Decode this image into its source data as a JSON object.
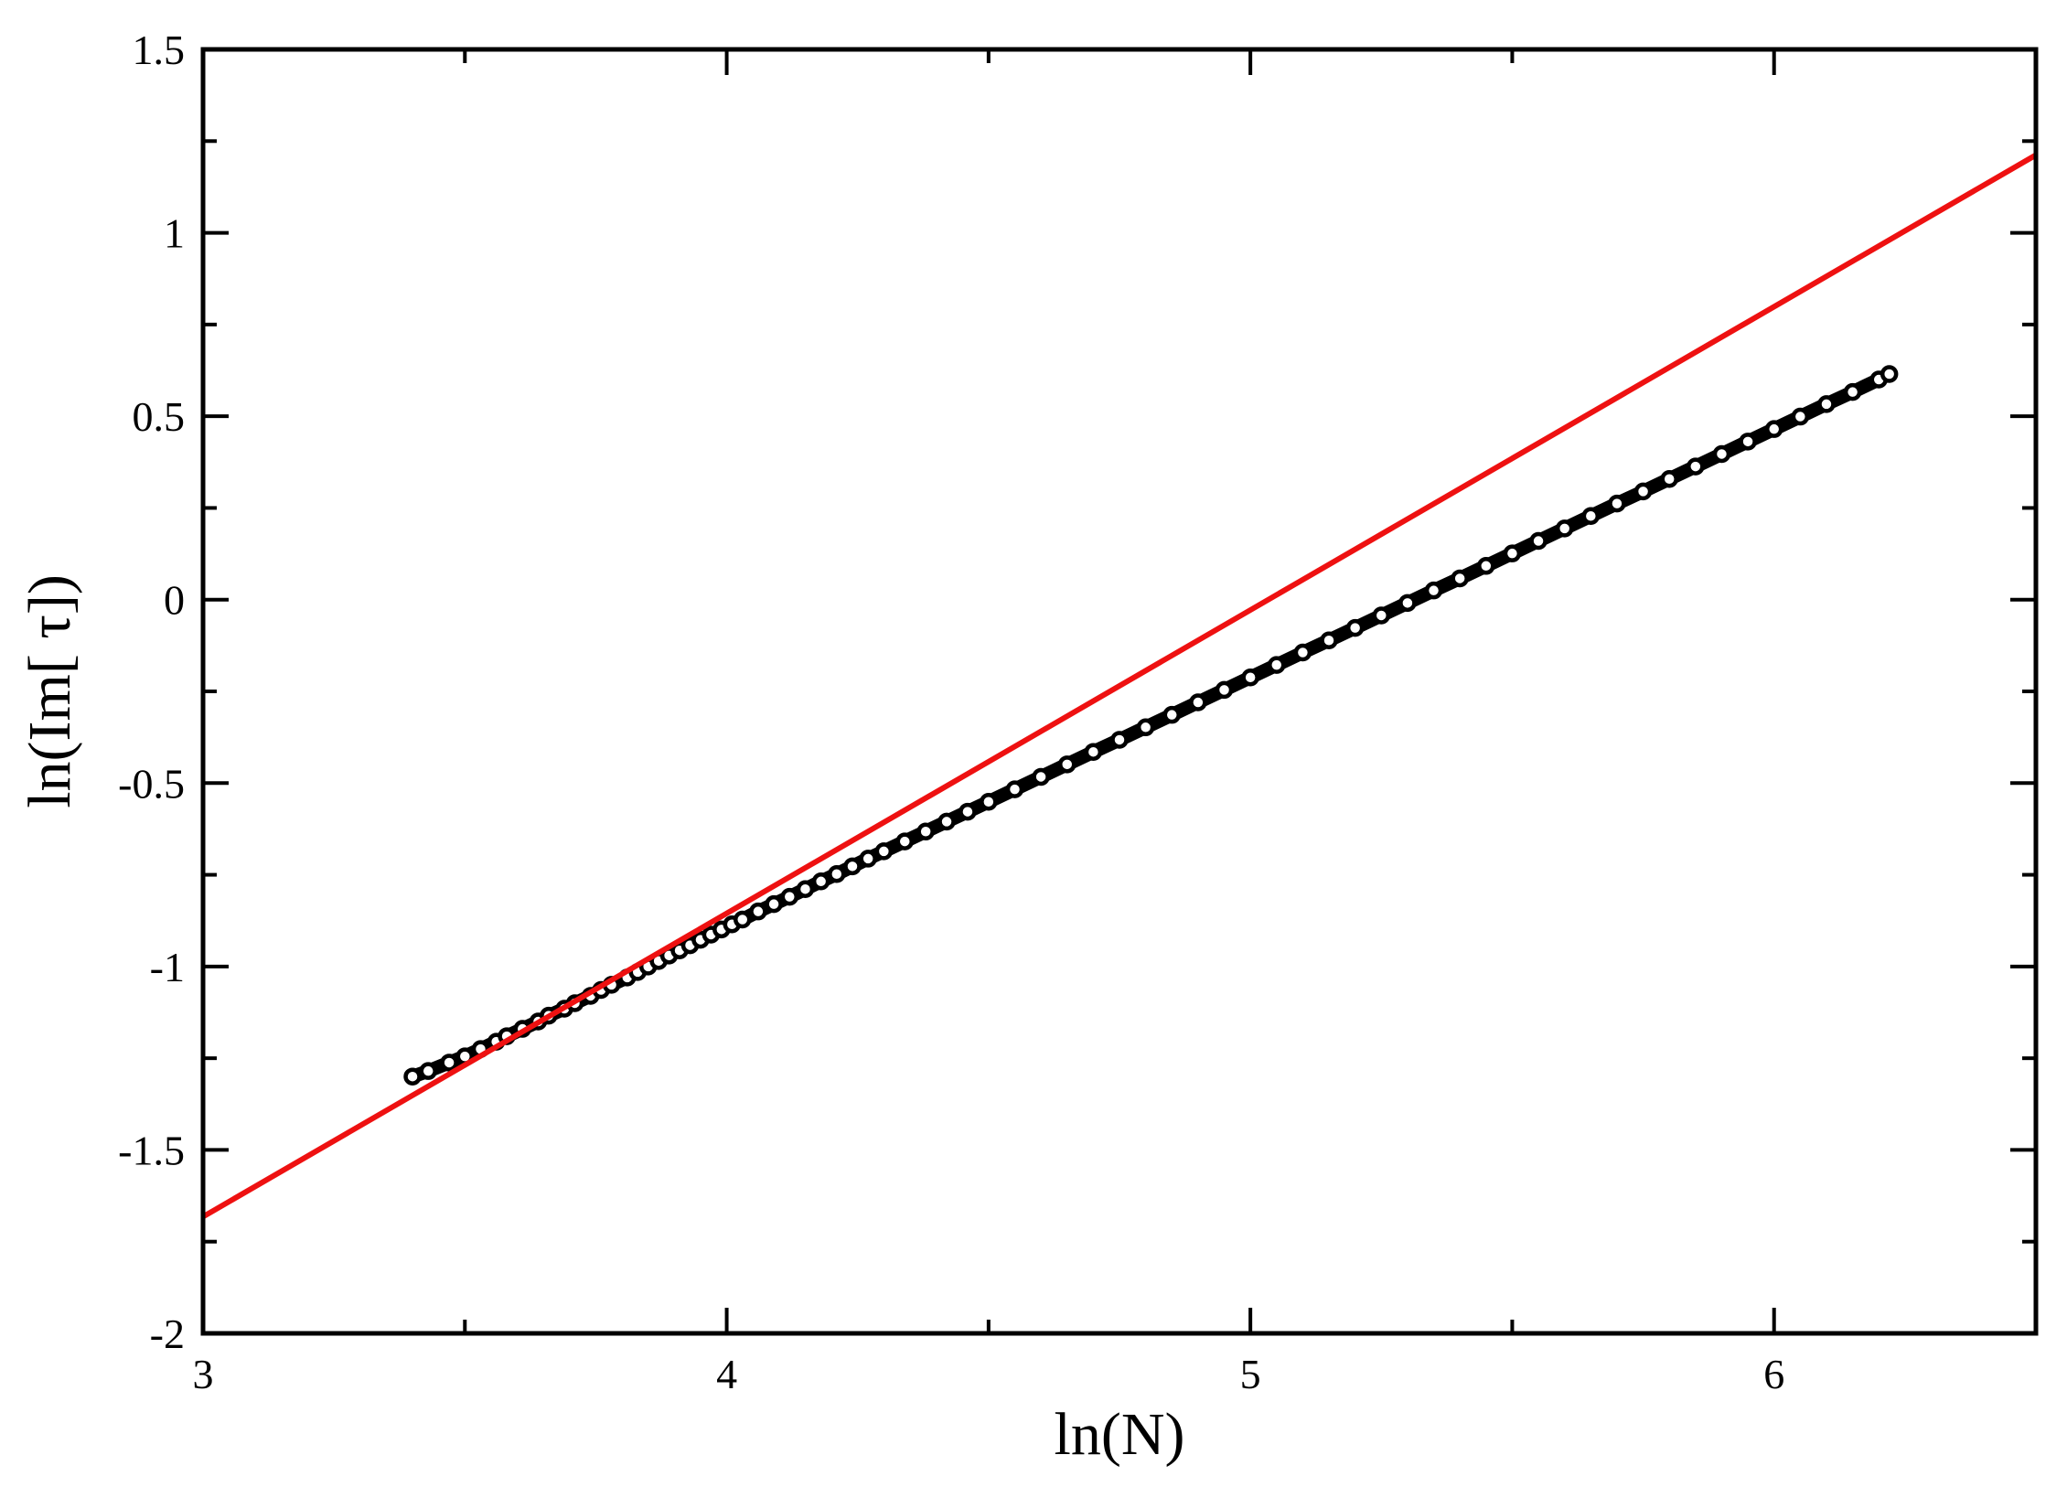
{
  "chart_data": {
    "type": "scatter",
    "title": "",
    "xlabel": "ln(N)",
    "ylabel": "ln(Im[ τ])",
    "xlim": [
      3,
      6.5
    ],
    "ylim": [
      -2,
      1.5
    ],
    "xticks": [
      {
        "value": 3,
        "label": "3"
      },
      {
        "value": 4,
        "label": "4"
      },
      {
        "value": 5,
        "label": "5"
      },
      {
        "value": 6,
        "label": "6"
      }
    ],
    "yticks": [
      {
        "value": -2,
        "label": "-2"
      },
      {
        "value": -1.5,
        "label": "-1.5"
      },
      {
        "value": -1,
        "label": "-1"
      },
      {
        "value": -0.5,
        "label": "-0.5"
      },
      {
        "value": 0,
        "label": "0"
      },
      {
        "value": 0.5,
        "label": "0.5"
      },
      {
        "value": 1,
        "label": "1"
      },
      {
        "value": 1.5,
        "label": "1.5"
      }
    ],
    "grid": false,
    "legend": "none",
    "series": [
      {
        "kind": "markers",
        "marker": "open-circle",
        "color": "#000000",
        "x": [
          3.4,
          3.43,
          3.47,
          3.5,
          3.53,
          3.56,
          3.58,
          3.61,
          3.64,
          3.66,
          3.69,
          3.71,
          3.74,
          3.76,
          3.78,
          3.81,
          3.83,
          3.85,
          3.87,
          3.89,
          3.91,
          3.93,
          3.95,
          3.97,
          3.99,
          4.01,
          4.03,
          4.06,
          4.09,
          4.12,
          4.15,
          4.18,
          4.21,
          4.24,
          4.27,
          4.3,
          4.34,
          4.38,
          4.42,
          4.46,
          4.5,
          4.55,
          4.6,
          4.65,
          4.7,
          4.75,
          4.8,
          4.85,
          4.9,
          4.95,
          5.0,
          5.05,
          5.1,
          5.15,
          5.2,
          5.25,
          5.3,
          5.35,
          5.4,
          5.45,
          5.5,
          5.55,
          5.6,
          5.65,
          5.7,
          5.75,
          5.8,
          5.85,
          5.9,
          5.95,
          6.0,
          6.05,
          6.1,
          6.15,
          6.2,
          6.22
        ],
        "y": [
          -1.3,
          -1.285,
          -1.262,
          -1.245,
          -1.225,
          -1.205,
          -1.19,
          -1.17,
          -1.15,
          -1.134,
          -1.115,
          -1.1,
          -1.08,
          -1.064,
          -1.05,
          -1.03,
          -1.015,
          -1.0,
          -0.985,
          -0.97,
          -0.956,
          -0.942,
          -0.927,
          -0.913,
          -0.899,
          -0.885,
          -0.872,
          -0.85,
          -0.83,
          -0.81,
          -0.789,
          -0.768,
          -0.748,
          -0.727,
          -0.706,
          -0.686,
          -0.659,
          -0.632,
          -0.605,
          -0.578,
          -0.551,
          -0.517,
          -0.483,
          -0.449,
          -0.415,
          -0.382,
          -0.348,
          -0.314,
          -0.28,
          -0.246,
          -0.212,
          -0.178,
          -0.144,
          -0.111,
          -0.077,
          -0.043,
          -0.009,
          0.025,
          0.058,
          0.092,
          0.126,
          0.16,
          0.194,
          0.228,
          0.262,
          0.295,
          0.329,
          0.363,
          0.397,
          0.431,
          0.465,
          0.499,
          0.533,
          0.566,
          0.6,
          0.615
        ]
      },
      {
        "kind": "line",
        "color": "#ee1111",
        "x": [
          3.0,
          6.5
        ],
        "y": [
          -1.682,
          1.212
        ]
      }
    ]
  }
}
